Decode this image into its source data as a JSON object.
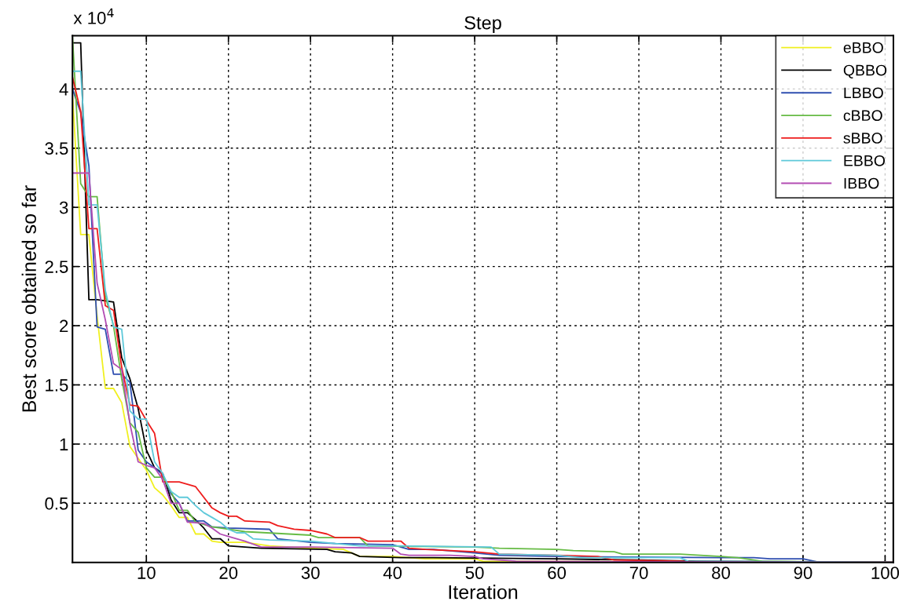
{
  "chart_data": {
    "type": "line",
    "title": "Step",
    "xlabel": "Iteration",
    "ylabel": "Best score obtained so far",
    "annotations": [
      "x 10$^{4}$"
    ],
    "xlim": [
      1,
      101
    ],
    "ylim": [
      0,
      4.45
    ],
    "xticks": [
      10,
      20,
      30,
      40,
      50,
      60,
      70,
      80,
      90,
      100
    ],
    "yticks": [
      0.5,
      1,
      1.5,
      2,
      2.5,
      3,
      3.5,
      4
    ],
    "grid": true,
    "legend": "top right",
    "marker": "none",
    "line_style": "solid",
    "series": [
      {
        "name": "eBBO",
        "color": "#f0f020",
        "x": [
          1,
          2,
          3,
          4,
          5,
          6,
          7,
          8,
          9,
          10,
          11,
          12,
          13,
          14,
          15,
          16,
          17,
          18,
          19,
          22,
          25,
          30,
          34,
          36,
          40,
          44,
          50,
          51,
          101
        ],
        "values": [
          3.95,
          2.77,
          2.77,
          2.08,
          1.47,
          1.47,
          1.35,
          0.98,
          0.88,
          0.78,
          0.63,
          0.57,
          0.48,
          0.38,
          0.38,
          0.24,
          0.24,
          0.18,
          0.17,
          0.17,
          0.14,
          0.12,
          0.11,
          0.05,
          0.05,
          0.03,
          0.03,
          0.01,
          0
        ]
      },
      {
        "name": "QBBO",
        "color": "#000000",
        "x": [
          1,
          2,
          3,
          4,
          6,
          7,
          8,
          9,
          10,
          11,
          12,
          13,
          14,
          15,
          16,
          17,
          18,
          19,
          20,
          24,
          32,
          33,
          35,
          36,
          41,
          45,
          60,
          70,
          77,
          101
        ],
        "values": [
          4.39,
          4.39,
          2.22,
          2.22,
          2.2,
          1.73,
          1.55,
          1.3,
          0.95,
          0.8,
          0.75,
          0.53,
          0.42,
          0.42,
          0.36,
          0.29,
          0.2,
          0.2,
          0.14,
          0.12,
          0.11,
          0.09,
          0.08,
          0.05,
          0.04,
          0.04,
          0.03,
          0.02,
          0.01,
          0
        ]
      },
      {
        "name": "LBBO",
        "color": "#2f4fb0",
        "x": [
          1,
          2,
          3,
          4,
          5,
          6,
          7,
          8,
          9,
          10,
          11,
          12,
          13,
          14,
          15,
          17,
          18,
          20,
          25,
          26,
          30,
          33,
          40,
          42,
          45,
          50,
          53,
          60,
          80,
          84,
          86,
          90,
          92,
          101
        ],
        "values": [
          4.0,
          3.8,
          3.35,
          1.99,
          1.97,
          1.59,
          1.59,
          1.52,
          0.95,
          0.85,
          0.8,
          0.74,
          0.58,
          0.5,
          0.35,
          0.35,
          0.3,
          0.29,
          0.28,
          0.2,
          0.17,
          0.16,
          0.15,
          0.11,
          0.11,
          0.08,
          0.06,
          0.05,
          0.04,
          0.04,
          0.03,
          0.03,
          0,
          0
        ]
      },
      {
        "name": "cBBO",
        "color": "#66bb44",
        "x": [
          1,
          2,
          3,
          4,
          5,
          6,
          7,
          8,
          9,
          10,
          11,
          12,
          13,
          14,
          15,
          16,
          18,
          20,
          22,
          30,
          31,
          36,
          37,
          50,
          53,
          60,
          62,
          67,
          68,
          75,
          80,
          82,
          85,
          101
        ],
        "values": [
          4.44,
          3.2,
          3.09,
          3.09,
          2.25,
          2.0,
          1.55,
          1.18,
          1.1,
          0.8,
          0.72,
          0.72,
          0.6,
          0.44,
          0.44,
          0.34,
          0.3,
          0.28,
          0.26,
          0.23,
          0.21,
          0.21,
          0.14,
          0.13,
          0.12,
          0.11,
          0.1,
          0.09,
          0.07,
          0.07,
          0.05,
          0.04,
          0.01,
          0
        ]
      },
      {
        "name": "sBBO",
        "color": "#ee1c1c",
        "x": [
          1,
          2,
          3,
          4,
          5,
          6,
          7,
          8,
          9,
          10,
          11,
          12,
          14,
          15,
          16,
          17,
          18,
          19,
          20,
          21,
          22,
          25,
          26,
          28,
          30,
          32,
          33,
          36,
          37,
          41,
          42,
          44,
          50,
          53,
          60,
          65,
          67,
          75,
          78,
          101
        ],
        "values": [
          4.1,
          3.81,
          2.82,
          2.82,
          2.17,
          2.13,
          1.65,
          1.33,
          1.32,
          1.2,
          1.09,
          0.68,
          0.68,
          0.66,
          0.64,
          0.55,
          0.46,
          0.42,
          0.39,
          0.39,
          0.35,
          0.34,
          0.31,
          0.28,
          0.27,
          0.24,
          0.21,
          0.21,
          0.18,
          0.18,
          0.12,
          0.11,
          0.09,
          0.07,
          0.06,
          0.05,
          0.02,
          0.01,
          0,
          0
        ]
      },
      {
        "name": "EBBO",
        "color": "#5fc9da",
        "x": [
          1,
          2,
          3,
          4,
          5,
          6,
          7,
          8,
          9,
          10,
          11,
          12,
          13,
          14,
          15,
          16,
          17,
          18,
          19,
          20,
          21,
          22,
          23,
          25,
          30,
          36,
          40,
          52,
          53,
          60,
          63,
          75,
          76,
          101
        ],
        "values": [
          4.15,
          4.15,
          3.02,
          3.02,
          2.3,
          1.99,
          1.97,
          1.28,
          1.21,
          1.21,
          0.85,
          0.75,
          0.6,
          0.55,
          0.55,
          0.48,
          0.42,
          0.38,
          0.34,
          0.28,
          0.25,
          0.25,
          0.2,
          0.19,
          0.18,
          0.14,
          0.14,
          0.13,
          0.07,
          0.06,
          0.04,
          0.04,
          0.01,
          0
        ]
      },
      {
        "name": "IBBO",
        "color": "#b34db3",
        "x": [
          1,
          3,
          4,
          5,
          6,
          7,
          8,
          9,
          10,
          11,
          12,
          13,
          14,
          15,
          17,
          18,
          19,
          20,
          22,
          24,
          30,
          40,
          41,
          42,
          47,
          50,
          51,
          55,
          101
        ],
        "values": [
          3.29,
          3.29,
          2.36,
          2.05,
          1.68,
          1.63,
          1.17,
          0.85,
          0.82,
          0.8,
          0.7,
          0.5,
          0.5,
          0.34,
          0.33,
          0.29,
          0.24,
          0.22,
          0.18,
          0.13,
          0.13,
          0.12,
          0.07,
          0.06,
          0.06,
          0.05,
          0.03,
          0.01,
          0
        ]
      }
    ]
  }
}
